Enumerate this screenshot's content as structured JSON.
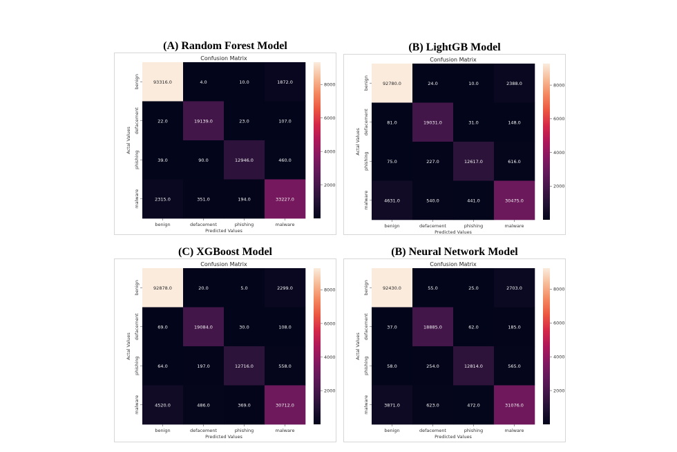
{
  "colors": {
    "colormap": "rocket",
    "low": "#03051a",
    "high": "#faebdd"
  },
  "chart_data": [
    {
      "type": "heatmap",
      "panel_title": "(A) Random Forest Model",
      "title": "Confusion Matrix",
      "xlabel": "Predicted Values",
      "ylabel": "Actal Values",
      "x_categories": [
        "benign",
        "defacement",
        "phishing",
        "malware"
      ],
      "y_categories": [
        "benign",
        "defacement",
        "phishing",
        "malware"
      ],
      "values": [
        [
          93316.0,
          4.0,
          10.0,
          1872.0
        ],
        [
          22.0,
          19139.0,
          23.0,
          107.0
        ],
        [
          39.0,
          90.0,
          12946.0,
          460.0
        ],
        [
          2315.0,
          351.0,
          194.0,
          33227.0
        ]
      ],
      "colorbar": {
        "ticks": [
          20000,
          40000,
          60000,
          80000
        ],
        "range": [
          0,
          93316
        ]
      }
    },
    {
      "type": "heatmap",
      "panel_title": "(B) LightGB Model",
      "title": "Confusion Matrix",
      "xlabel": "Predicted Values",
      "ylabel": "Actal Values",
      "x_categories": [
        "benign",
        "defacement",
        "phishing",
        "malware"
      ],
      "y_categories": [
        "benign",
        "defacement",
        "phishing",
        "malware"
      ],
      "values": [
        [
          92780.0,
          24.0,
          10.0,
          2388.0
        ],
        [
          81.0,
          19031.0,
          31.0,
          148.0
        ],
        [
          75.0,
          227.0,
          12617.0,
          616.0
        ],
        [
          4631.0,
          540.0,
          441.0,
          30475.0
        ]
      ],
      "colorbar": {
        "ticks": [
          20000,
          40000,
          60000,
          80000
        ],
        "range": [
          0,
          92780
        ]
      }
    },
    {
      "type": "heatmap",
      "panel_title": "(C) XGBoost Model",
      "title": "Confusion Matrix",
      "xlabel": "Predicted Values",
      "ylabel": "Actal Values",
      "x_categories": [
        "benign",
        "defacement",
        "phishing",
        "malware"
      ],
      "y_categories": [
        "benign",
        "defacement",
        "phishing",
        "malware"
      ],
      "values": [
        [
          92878.0,
          20.0,
          5.0,
          2299.0
        ],
        [
          69.0,
          19084.0,
          30.0,
          108.0
        ],
        [
          64.0,
          197.0,
          12716.0,
          558.0
        ],
        [
          4520.0,
          486.0,
          369.0,
          30712.0
        ]
      ],
      "colorbar": {
        "ticks": [
          20000,
          40000,
          60000,
          80000
        ],
        "range": [
          0,
          92878
        ]
      }
    },
    {
      "type": "heatmap",
      "panel_title": "(B) Neural Network Model",
      "title": "Confusion Matrix",
      "xlabel": "Predicted Values",
      "ylabel": "Actal Values",
      "x_categories": [
        "benign",
        "defacement",
        "phishing",
        "malware"
      ],
      "y_categories": [
        "benign",
        "defacement",
        "phishing",
        "malware"
      ],
      "values": [
        [
          92430.0,
          55.0,
          25.0,
          2703.0
        ],
        [
          37.0,
          18885.0,
          62.0,
          185.0
        ],
        [
          58.0,
          254.0,
          12814.0,
          565.0
        ],
        [
          3871.0,
          623.0,
          472.0,
          31076.0
        ]
      ],
      "colorbar": {
        "ticks": [
          20000,
          40000,
          60000,
          80000
        ],
        "range": [
          0,
          92430
        ]
      }
    }
  ]
}
